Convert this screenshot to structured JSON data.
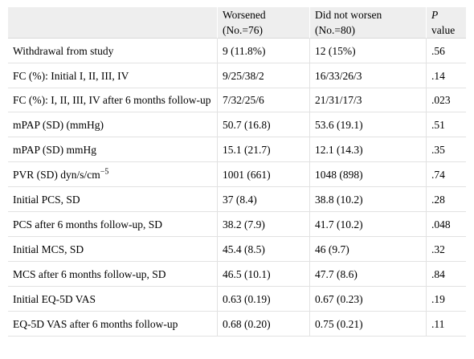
{
  "table": {
    "headers": {
      "col1": "",
      "worsened": "Worsened",
      "worsened_n": "(No.=76)",
      "not_worsen": "Did not worsen",
      "not_worsen_n": "(No.=80)",
      "p_letter": "P",
      "p_value": "value"
    },
    "rows": [
      {
        "label": "Withdrawal from study",
        "worsened": "9 (11.8%)",
        "not_worsen": "12 (15%)",
        "p": ".56"
      },
      {
        "label": "FC (%): Initial I, II, III, IV",
        "worsened": "9/25/38/2",
        "not_worsen": "16/33/26/3",
        "p": ".14"
      },
      {
        "label": "FC (%): I, II, III, IV after 6 months follow-up",
        "worsened": "7/32/25/6",
        "not_worsen": "21/31/17/3",
        "p": ".023"
      },
      {
        "label": "mPAP (SD) (mmHg)",
        "worsened": "50.7 (16.8)",
        "not_worsen": "53.6 (19.1)",
        "p": ".51"
      },
      {
        "label": "mPAP (SD) mmHg",
        "worsened": "15.1 (21.7)",
        "not_worsen": "12.1 (14.3)",
        "p": ".35"
      },
      {
        "label": "PVR (SD) dyn/s/cm",
        "label_sup": "−5",
        "worsened": "1001 (661)",
        "not_worsen": "1048 (898)",
        "p": ".74"
      },
      {
        "label": "Initial PCS, SD",
        "worsened": "37 (8.4)",
        "not_worsen": "38.8 (10.2)",
        "p": ".28"
      },
      {
        "label": "PCS after 6 months follow-up, SD",
        "worsened": "38.2 (7.9)",
        "not_worsen": "41.7 (10.2)",
        "p": ".048"
      },
      {
        "label": "Initial MCS, SD",
        "worsened": "45.4 (8.5)",
        "not_worsen": "46 (9.7)",
        "p": ".32"
      },
      {
        "label": "MCS after 6 months follow-up, SD",
        "worsened": "46.5 (10.1)",
        "not_worsen": "47.7 (8.6)",
        "p": ".84"
      },
      {
        "label": "Initial EQ-5D VAS",
        "worsened": "0.63 (0.19)",
        "not_worsen": "0.67 (0.23)",
        "p": ".19"
      },
      {
        "label": "EQ-5D VAS after 6 months follow-up",
        "worsened": "0.68 (0.20)",
        "not_worsen": "0.75 (0.21)",
        "p": ".11"
      }
    ]
  }
}
